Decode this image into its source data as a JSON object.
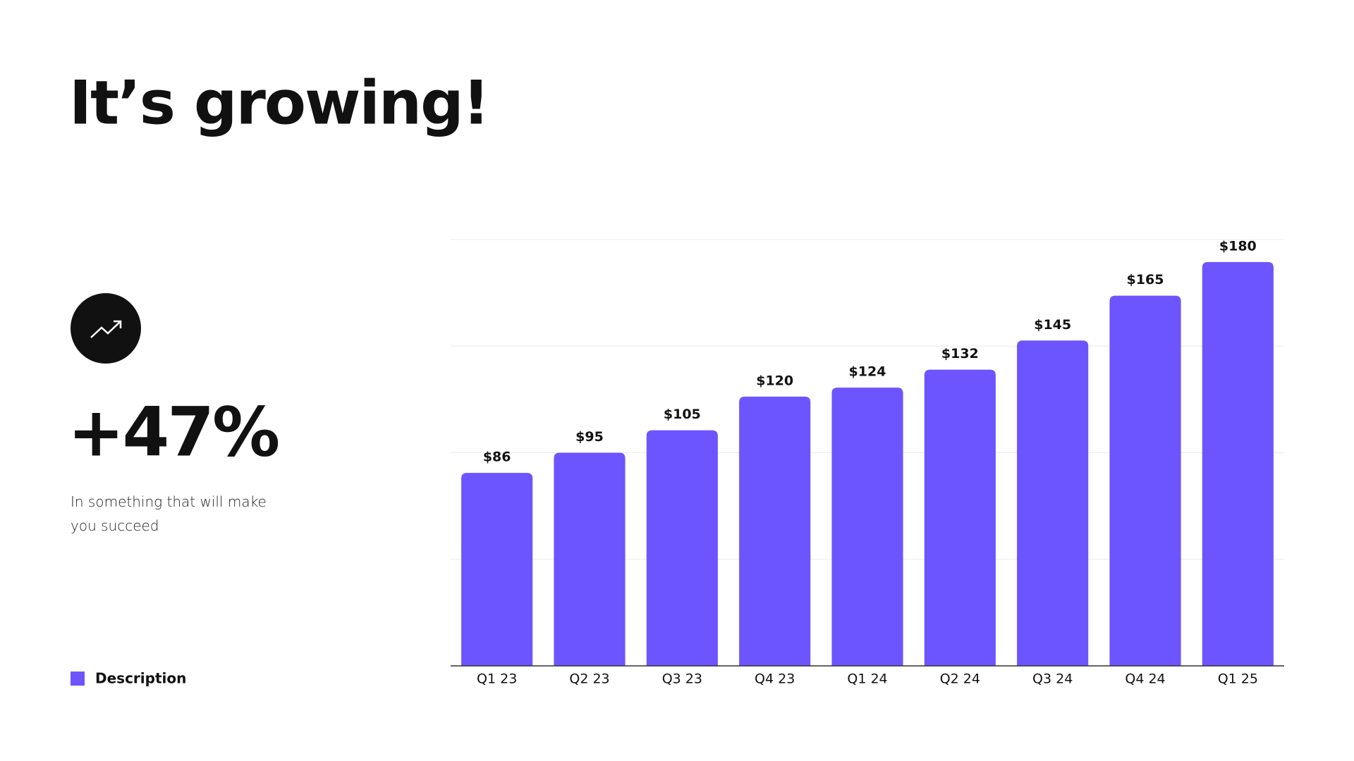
{
  "title": "It’s growing!",
  "kpi": {
    "stat": "+47%",
    "text": "In something that will make you succeed"
  },
  "chart_data": {
    "type": "bar",
    "categories": [
      "Q1 23",
      "Q2 23",
      "Q3 23",
      "Q4 23",
      "Q1 24",
      "Q2 24",
      "Q3 24",
      "Q4 24",
      "Q1 25"
    ],
    "series": [
      {
        "name": "Description",
        "color": "#6c55ff",
        "values": [
          86,
          95,
          105,
          120,
          124,
          132,
          145,
          165,
          180
        ],
        "value_labels": [
          "$86",
          "$95",
          "$105",
          "$120",
          "$124",
          "$132",
          "$145",
          "$165",
          "$180"
        ]
      }
    ],
    "ylim": [
      0,
      190
    ],
    "yticks": [
      0,
      47.5,
      95,
      142.5,
      190
    ],
    "grid": true
  }
}
